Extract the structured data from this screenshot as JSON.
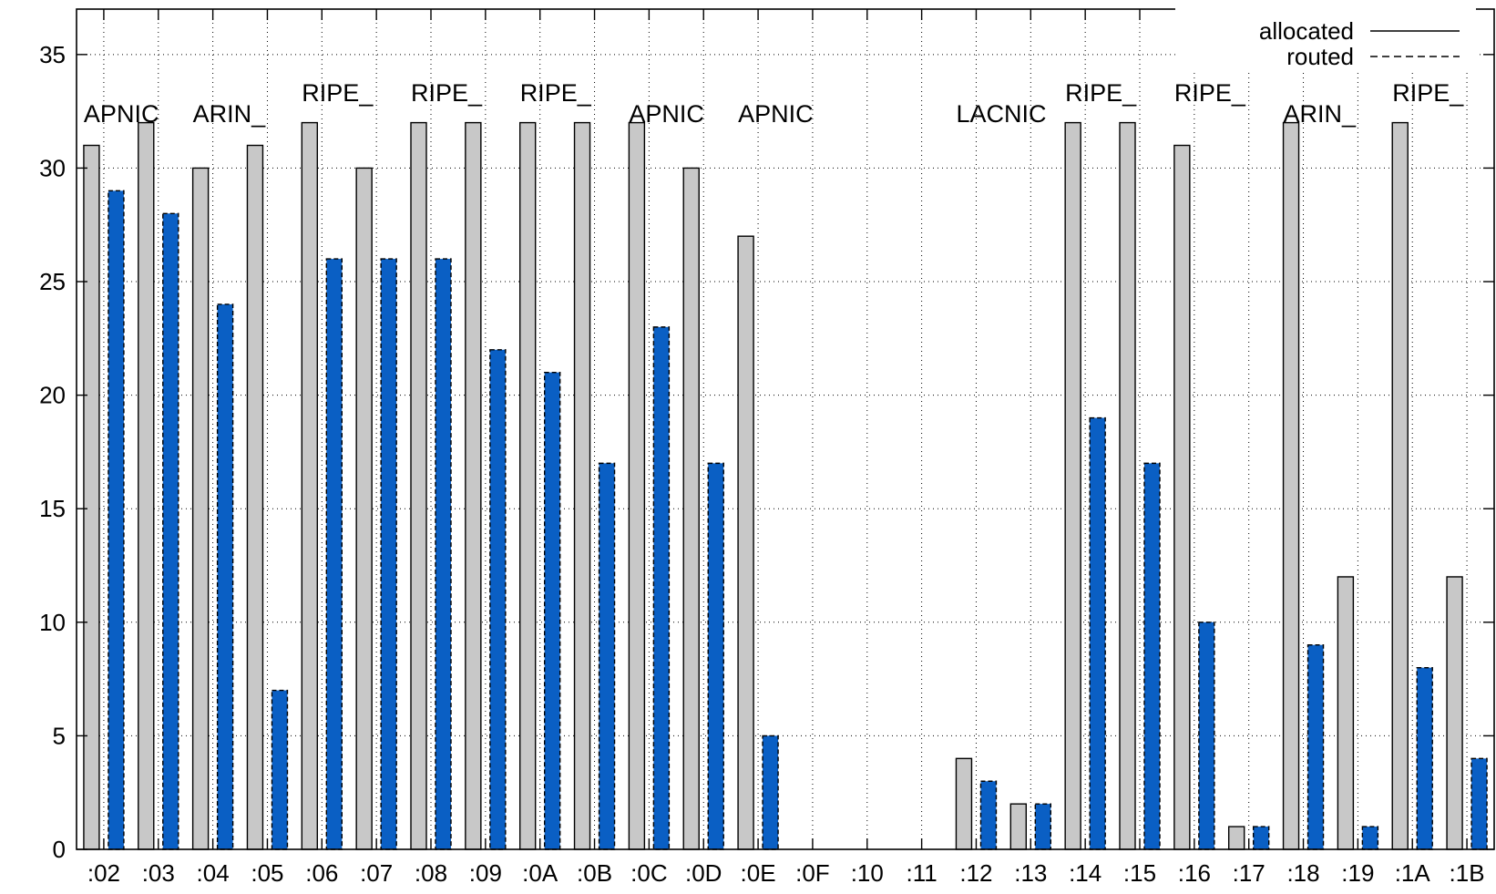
{
  "chart_data": {
    "type": "bar",
    "title": "",
    "xlabel": "",
    "ylabel": "",
    "ylim": [
      0,
      37
    ],
    "yticks": [
      0,
      5,
      10,
      15,
      20,
      25,
      30,
      35
    ],
    "grid": true,
    "legend_position": "top-right",
    "categories": [
      ":02",
      ":03",
      ":04",
      ":05",
      ":06",
      ":07",
      ":08",
      ":09",
      ":0A",
      ":0B",
      ":0C",
      ":0D",
      ":0E",
      ":0F",
      ":10",
      ":11",
      ":12",
      ":13",
      ":14",
      ":15",
      ":16",
      ":17",
      ":18",
      ":19",
      ":1A",
      ":1B"
    ],
    "series": [
      {
        "name": "allocated",
        "line_style": "solid",
        "color": "#c8c8c8",
        "values": [
          31,
          32,
          30,
          31,
          32,
          30,
          32,
          32,
          32,
          32,
          32,
          30,
          27,
          0,
          0,
          0,
          4,
          2,
          32,
          32,
          31,
          1,
          32,
          12,
          32,
          12
        ]
      },
      {
        "name": "routed",
        "line_style": "dashed",
        "color": "#0a5fc4",
        "values": [
          29,
          28,
          24,
          7,
          26,
          26,
          26,
          22,
          21,
          17,
          23,
          17,
          5,
          0,
          0,
          0,
          3,
          2,
          19,
          17,
          10,
          1,
          9,
          1,
          8,
          4
        ]
      }
    ],
    "registry_labels": [
      {
        "text": "APNIC",
        "category": ":02",
        "row": "low"
      },
      {
        "text": "ARIN_",
        "category": ":04",
        "row": "low"
      },
      {
        "text": "RIPE_",
        "category": ":06",
        "row": "high"
      },
      {
        "text": "RIPE_",
        "category": ":08",
        "row": "high"
      },
      {
        "text": "RIPE_",
        "category": ":0A",
        "row": "high"
      },
      {
        "text": "APNIC",
        "category": ":0C",
        "row": "low"
      },
      {
        "text": "APNIC",
        "category": ":0E",
        "row": "low"
      },
      {
        "text": "LACNIC",
        "category": ":12",
        "row": "low"
      },
      {
        "text": "RIPE_",
        "category": ":14",
        "row": "high"
      },
      {
        "text": "RIPE_",
        "category": ":16",
        "row": "high"
      },
      {
        "text": "ARIN_",
        "category": ":18",
        "row": "low"
      },
      {
        "text": "RIPE_",
        "category": ":1A",
        "row": "high"
      }
    ]
  }
}
